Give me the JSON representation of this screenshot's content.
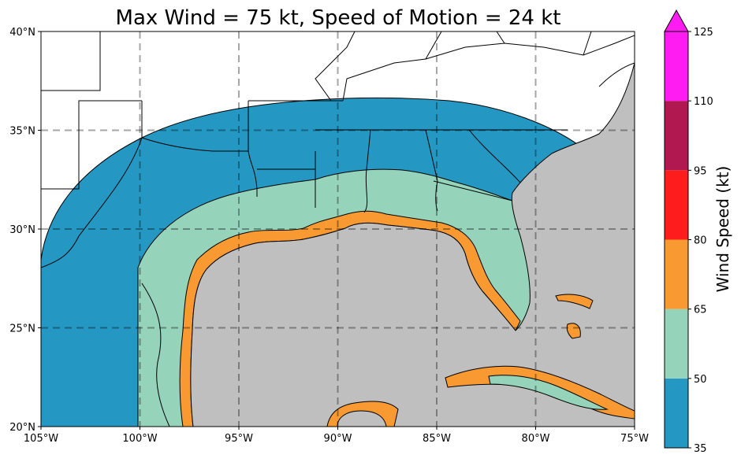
{
  "title": "Max Wind = 75 kt, Speed of Motion = 24 kt",
  "map": {
    "lon_range": [
      -105,
      -75
    ],
    "lat_range": [
      20,
      40
    ],
    "lon_ticks": [
      {
        "value": -105,
        "label": "105°W"
      },
      {
        "value": -100,
        "label": "100°W"
      },
      {
        "value": -95,
        "label": "95°W"
      },
      {
        "value": -90,
        "label": "90°W"
      },
      {
        "value": -85,
        "label": "85°W"
      },
      {
        "value": -80,
        "label": "80°W"
      },
      {
        "value": -75,
        "label": "75°W"
      }
    ],
    "lat_ticks": [
      {
        "value": 20,
        "label": "20°N"
      },
      {
        "value": 25,
        "label": "25°N"
      },
      {
        "value": 30,
        "label": "30°N"
      },
      {
        "value": 35,
        "label": "35°N"
      },
      {
        "value": 40,
        "label": "40°N"
      }
    ],
    "gridlines": true,
    "ocean_color": "#bfbfbf",
    "land_color": "#ffffff"
  },
  "colorbar": {
    "label": "Wind Speed (kt)",
    "ticks": [
      "35",
      "50",
      "65",
      "80",
      "95",
      "110",
      "125"
    ],
    "bins": [
      {
        "from": 35,
        "to": 50,
        "color": "#2498c3"
      },
      {
        "from": 50,
        "to": 65,
        "color": "#96d3bb"
      },
      {
        "from": 65,
        "to": 80,
        "color": "#f89a31"
      },
      {
        "from": 80,
        "to": 95,
        "color": "#fe1c1c"
      },
      {
        "from": 95,
        "to": 110,
        "color": "#b0184f"
      },
      {
        "from": 110,
        "to": 125,
        "color": "#ff1cf2"
      }
    ],
    "extend_color": "#ff1cf2"
  }
}
